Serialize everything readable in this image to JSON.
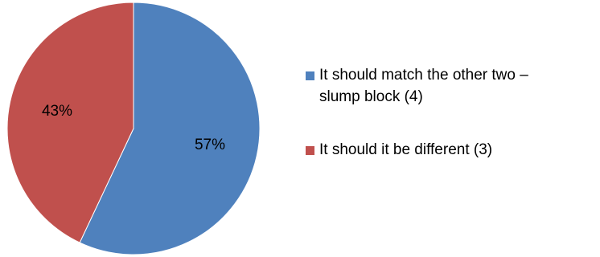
{
  "chart_data": {
    "type": "pie",
    "title": "",
    "slices": [
      {
        "label": "It should match the other two – slump block (4)",
        "value": 57,
        "count": 4,
        "data_label": "57%",
        "color": "#4F81BD"
      },
      {
        "label": "It should it be different (3)",
        "value": 43,
        "count": 3,
        "data_label": "43%",
        "color": "#C0504D"
      }
    ],
    "start_angle_deg": 0,
    "direction": "clockwise",
    "legend_position": "right"
  }
}
